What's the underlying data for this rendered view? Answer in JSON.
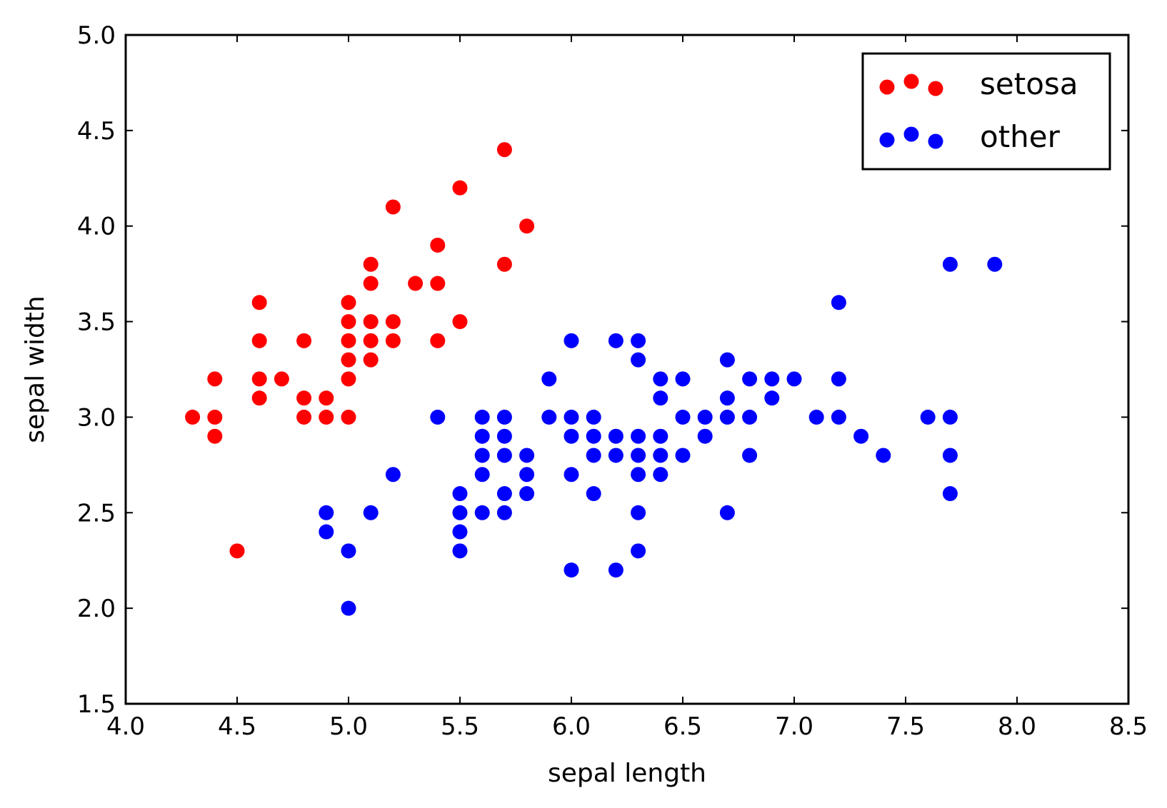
{
  "chart_data": {
    "type": "scatter",
    "title": "",
    "xlabel": "sepal length",
    "ylabel": "sepal width",
    "xlim": [
      4.0,
      8.5
    ],
    "ylim": [
      1.5,
      5.0
    ],
    "xticks": [
      "4.0",
      "4.5",
      "5.0",
      "5.5",
      "6.0",
      "6.5",
      "7.0",
      "7.5",
      "8.0",
      "8.5"
    ],
    "yticks": [
      "1.5",
      "2.0",
      "2.5",
      "3.0",
      "3.5",
      "4.0",
      "4.5",
      "5.0"
    ],
    "grid": false,
    "legend": "top-right",
    "series": [
      {
        "name": "setosa",
        "color": "#ff0000",
        "points": [
          [
            4.3,
            3.0
          ],
          [
            4.4,
            3.2
          ],
          [
            4.4,
            3.0
          ],
          [
            4.4,
            2.9
          ],
          [
            4.5,
            2.3
          ],
          [
            4.6,
            3.6
          ],
          [
            4.6,
            3.4
          ],
          [
            4.6,
            3.2
          ],
          [
            4.6,
            3.1
          ],
          [
            4.7,
            3.2
          ],
          [
            4.8,
            3.4
          ],
          [
            4.8,
            3.1
          ],
          [
            4.8,
            3.0
          ],
          [
            4.9,
            3.1
          ],
          [
            4.9,
            3.0
          ],
          [
            5.0,
            3.6
          ],
          [
            5.0,
            3.5
          ],
          [
            5.0,
            3.4
          ],
          [
            5.0,
            3.3
          ],
          [
            5.0,
            3.2
          ],
          [
            5.0,
            3.0
          ],
          [
            5.1,
            3.8
          ],
          [
            5.1,
            3.7
          ],
          [
            5.1,
            3.5
          ],
          [
            5.1,
            3.4
          ],
          [
            5.1,
            3.3
          ],
          [
            5.2,
            4.1
          ],
          [
            5.2,
            3.5
          ],
          [
            5.2,
            3.4
          ],
          [
            5.3,
            3.7
          ],
          [
            5.4,
            3.9
          ],
          [
            5.4,
            3.7
          ],
          [
            5.4,
            3.4
          ],
          [
            5.5,
            4.2
          ],
          [
            5.5,
            3.5
          ],
          [
            5.7,
            4.4
          ],
          [
            5.7,
            3.8
          ],
          [
            5.8,
            4.0
          ]
        ]
      },
      {
        "name": "other",
        "color": "#0000ff",
        "points": [
          [
            4.9,
            2.5
          ],
          [
            4.9,
            2.4
          ],
          [
            5.0,
            2.3
          ],
          [
            5.0,
            2.0
          ],
          [
            5.1,
            2.5
          ],
          [
            5.2,
            2.7
          ],
          [
            5.4,
            3.0
          ],
          [
            5.5,
            2.6
          ],
          [
            5.5,
            2.5
          ],
          [
            5.5,
            2.4
          ],
          [
            5.5,
            2.3
          ],
          [
            5.6,
            3.0
          ],
          [
            5.6,
            2.9
          ],
          [
            5.6,
            2.8
          ],
          [
            5.6,
            2.7
          ],
          [
            5.6,
            2.5
          ],
          [
            5.7,
            3.0
          ],
          [
            5.7,
            2.9
          ],
          [
            5.7,
            2.8
          ],
          [
            5.7,
            2.6
          ],
          [
            5.7,
            2.5
          ],
          [
            5.8,
            2.8
          ],
          [
            5.8,
            2.7
          ],
          [
            5.8,
            2.6
          ],
          [
            5.9,
            3.2
          ],
          [
            5.9,
            3.0
          ],
          [
            6.0,
            3.4
          ],
          [
            6.0,
            3.0
          ],
          [
            6.0,
            2.9
          ],
          [
            6.0,
            2.7
          ],
          [
            6.0,
            2.2
          ],
          [
            6.1,
            3.0
          ],
          [
            6.1,
            2.9
          ],
          [
            6.1,
            2.8
          ],
          [
            6.1,
            2.6
          ],
          [
            6.2,
            3.4
          ],
          [
            6.2,
            2.9
          ],
          [
            6.2,
            2.8
          ],
          [
            6.2,
            2.2
          ],
          [
            6.3,
            3.4
          ],
          [
            6.3,
            3.3
          ],
          [
            6.3,
            2.9
          ],
          [
            6.3,
            2.8
          ],
          [
            6.3,
            2.7
          ],
          [
            6.3,
            2.5
          ],
          [
            6.3,
            2.3
          ],
          [
            6.4,
            3.2
          ],
          [
            6.4,
            3.1
          ],
          [
            6.4,
            2.9
          ],
          [
            6.4,
            2.8
          ],
          [
            6.4,
            2.7
          ],
          [
            6.5,
            3.2
          ],
          [
            6.5,
            3.0
          ],
          [
            6.5,
            2.8
          ],
          [
            6.6,
            3.0
          ],
          [
            6.6,
            2.9
          ],
          [
            6.7,
            3.3
          ],
          [
            6.7,
            3.1
          ],
          [
            6.7,
            3.0
          ],
          [
            6.7,
            2.5
          ],
          [
            6.8,
            3.2
          ],
          [
            6.8,
            3.0
          ],
          [
            6.8,
            2.8
          ],
          [
            6.9,
            3.2
          ],
          [
            6.9,
            3.1
          ],
          [
            7.0,
            3.2
          ],
          [
            7.1,
            3.0
          ],
          [
            7.2,
            3.6
          ],
          [
            7.2,
            3.2
          ],
          [
            7.2,
            3.0
          ],
          [
            7.3,
            2.9
          ],
          [
            7.4,
            2.8
          ],
          [
            7.6,
            3.0
          ],
          [
            7.7,
            3.8
          ],
          [
            7.7,
            3.0
          ],
          [
            7.7,
            2.8
          ],
          [
            7.7,
            2.6
          ],
          [
            7.9,
            3.8
          ]
        ]
      }
    ]
  }
}
